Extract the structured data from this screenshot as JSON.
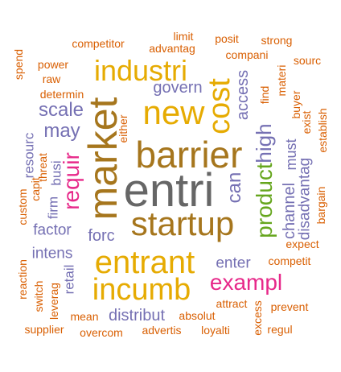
{
  "colors": {
    "orange": "#D95F02",
    "gold": "#E6AB02",
    "purple": "#7570B3",
    "magenta": "#E7298A",
    "green": "#66A61E",
    "brown": "#A6761D",
    "gray": "#666666"
  },
  "words": [
    {
      "text": "entri",
      "color": "gray"
    },
    {
      "text": "barrier",
      "color": "brown"
    },
    {
      "text": "startup",
      "color": "brown"
    },
    {
      "text": "market",
      "color": "brown"
    },
    {
      "text": "entrant",
      "color": "gold"
    },
    {
      "text": "incumb",
      "color": "gold"
    },
    {
      "text": "new",
      "color": "gold"
    },
    {
      "text": "industri",
      "color": "gold"
    },
    {
      "text": "cost",
      "color": "gold"
    },
    {
      "text": "product",
      "color": "green"
    },
    {
      "text": "exampl",
      "color": "magenta"
    },
    {
      "text": "requir",
      "color": "magenta"
    },
    {
      "text": "high",
      "color": "purple"
    },
    {
      "text": "scale",
      "color": "purple"
    },
    {
      "text": "may",
      "color": "purple"
    },
    {
      "text": "can",
      "color": "purple"
    },
    {
      "text": "forc",
      "color": "purple"
    },
    {
      "text": "govern",
      "color": "purple"
    },
    {
      "text": "access",
      "color": "purple"
    },
    {
      "text": "distribut",
      "color": "purple"
    },
    {
      "text": "channel",
      "color": "purple"
    },
    {
      "text": "disadvantag",
      "color": "purple"
    },
    {
      "text": "must",
      "color": "purple"
    },
    {
      "text": "factor",
      "color": "purple"
    },
    {
      "text": "intens",
      "color": "purple"
    },
    {
      "text": "enter",
      "color": "purple"
    },
    {
      "text": "busi",
      "color": "purple"
    },
    {
      "text": "resourc",
      "color": "purple"
    },
    {
      "text": "retail",
      "color": "purple"
    },
    {
      "text": "firm",
      "color": "purple"
    },
    {
      "text": "competitor",
      "color": "orange"
    },
    {
      "text": "advantag",
      "color": "orange"
    },
    {
      "text": "limit",
      "color": "orange"
    },
    {
      "text": "posit",
      "color": "orange"
    },
    {
      "text": "strong",
      "color": "orange"
    },
    {
      "text": "compani",
      "color": "orange"
    },
    {
      "text": "sourc",
      "color": "orange"
    },
    {
      "text": "spend",
      "color": "orange"
    },
    {
      "text": "power",
      "color": "orange"
    },
    {
      "text": "raw",
      "color": "orange"
    },
    {
      "text": "determin",
      "color": "orange"
    },
    {
      "text": "find",
      "color": "orange"
    },
    {
      "text": "materi",
      "color": "orange"
    },
    {
      "text": "buyer",
      "color": "orange"
    },
    {
      "text": "exist",
      "color": "orange"
    },
    {
      "text": "establish",
      "color": "orange"
    },
    {
      "text": "either",
      "color": "orange"
    },
    {
      "text": "threat",
      "color": "orange"
    },
    {
      "text": "capit",
      "color": "orange"
    },
    {
      "text": "custom",
      "color": "orange"
    },
    {
      "text": "bargain",
      "color": "orange"
    },
    {
      "text": "expect",
      "color": "orange"
    },
    {
      "text": "competit",
      "color": "orange"
    },
    {
      "text": "reaction",
      "color": "orange"
    },
    {
      "text": "switch",
      "color": "orange"
    },
    {
      "text": "leverag",
      "color": "orange"
    },
    {
      "text": "mean",
      "color": "orange"
    },
    {
      "text": "absolut",
      "color": "orange"
    },
    {
      "text": "attract",
      "color": "orange"
    },
    {
      "text": "prevent",
      "color": "orange"
    },
    {
      "text": "supplier",
      "color": "orange"
    },
    {
      "text": "overcom",
      "color": "orange"
    },
    {
      "text": "advertis",
      "color": "orange"
    },
    {
      "text": "loyalti",
      "color": "orange"
    },
    {
      "text": "excess",
      "color": "orange"
    },
    {
      "text": "regul",
      "color": "orange"
    }
  ]
}
